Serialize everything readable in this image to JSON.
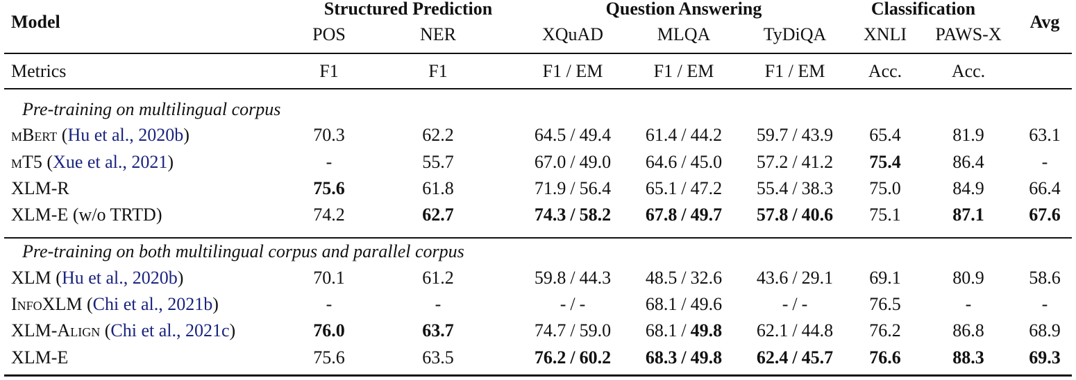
{
  "table": {
    "header": {
      "model": "Model",
      "avg": "Avg",
      "groups": [
        "Structured Prediction",
        "Question Answering",
        "Classification"
      ],
      "columns": [
        "POS",
        "NER",
        "XQuAD",
        "MLQA",
        "TyDiQA",
        "XNLI",
        "PAWS-X"
      ]
    },
    "metrics": {
      "label": "Metrics",
      "values": [
        "F1",
        "F1",
        "F1 / EM",
        "F1 / EM",
        "F1 / EM",
        "Acc.",
        "Acc."
      ]
    },
    "separator": "/",
    "sections": [
      {
        "title": "Pre-training on multilingual corpus",
        "rows": [
          {
            "name": "mBert",
            "citation": "(Hu et al., 2020b)",
            "cells": [
              "70.3",
              "62.2",
              [
                "64.5",
                "49.4"
              ],
              [
                "61.4",
                "44.2"
              ],
              [
                "59.7",
                "43.9"
              ],
              "65.4",
              "81.9",
              "63.1"
            ]
          },
          {
            "name": "mT5",
            "citation": "(Xue et al., 2021)",
            "cells": [
              "-",
              "55.7",
              [
                "67.0",
                "49.0"
              ],
              [
                "64.6",
                "45.0"
              ],
              [
                "57.2",
                "41.2"
              ],
              {
                "text": "75.4",
                "bold": true
              },
              "86.4",
              "-"
            ]
          },
          {
            "name": "XLM-R",
            "cells": [
              {
                "text": "75.6",
                "bold": true
              },
              "61.8",
              [
                "71.9",
                "56.4"
              ],
              [
                "65.1",
                "47.2"
              ],
              [
                "55.4",
                "38.3"
              ],
              "75.0",
              "84.9",
              "66.4"
            ]
          },
          {
            "name": "XLM-E",
            "note": "(w/o TRTD)",
            "cells": [
              "74.2",
              {
                "text": "62.7",
                "bold": true
              },
              [
                {
                  "text": "74.3",
                  "bold": true
                },
                {
                  "text": "58.2",
                  "bold": true
                }
              ],
              [
                {
                  "text": "67.8",
                  "bold": true
                },
                {
                  "text": "49.7",
                  "bold": true
                }
              ],
              [
                {
                  "text": "57.8",
                  "bold": true
                },
                {
                  "text": "40.6",
                  "bold": true
                }
              ],
              "75.1",
              {
                "text": "87.1",
                "bold": true
              },
              {
                "text": "67.6",
                "bold": true
              }
            ]
          }
        ]
      },
      {
        "title": "Pre-training on both multilingual corpus and parallel corpus",
        "rows": [
          {
            "name": "XLM",
            "citation": "(Hu et al., 2020b)",
            "cells": [
              "70.1",
              "61.2",
              [
                "59.8",
                "44.3"
              ],
              [
                "48.5",
                "32.6"
              ],
              [
                "43.6",
                "29.1"
              ],
              "69.1",
              "80.9",
              "58.6"
            ]
          },
          {
            "name": "InfoXLM",
            "citation": "(Chi et al., 2021b)",
            "cells": [
              "-",
              "-",
              [
                "-",
                "-"
              ],
              [
                "68.1",
                "49.6"
              ],
              [
                "-",
                "-"
              ],
              "76.5",
              "-",
              "-"
            ]
          },
          {
            "name": "XLM-Align",
            "citation": "(Chi et al., 2021c)",
            "cells": [
              {
                "text": "76.0",
                "bold": true
              },
              {
                "text": "63.7",
                "bold": true
              },
              [
                "74.7",
                "59.0"
              ],
              [
                "68.1",
                {
                  "text": "49.8",
                  "bold": true
                }
              ],
              [
                "62.1",
                "44.8"
              ],
              "76.2",
              "86.8",
              "68.9"
            ]
          },
          {
            "name": "XLM-E",
            "cells": [
              "75.6",
              "63.5",
              [
                {
                  "text": "76.2",
                  "bold": true
                },
                {
                  "text": "60.2",
                  "bold": true
                }
              ],
              [
                {
                  "text": "68.3",
                  "bold": true
                },
                {
                  "text": "49.8",
                  "bold": true
                }
              ],
              [
                {
                  "text": "62.4",
                  "bold": true
                },
                {
                  "text": "45.7",
                  "bold": true
                }
              ],
              {
                "text": "76.6",
                "bold": true
              },
              {
                "text": "88.3",
                "bold": true
              },
              {
                "text": "69.3",
                "bold": true
              }
            ]
          }
        ]
      }
    ]
  }
}
